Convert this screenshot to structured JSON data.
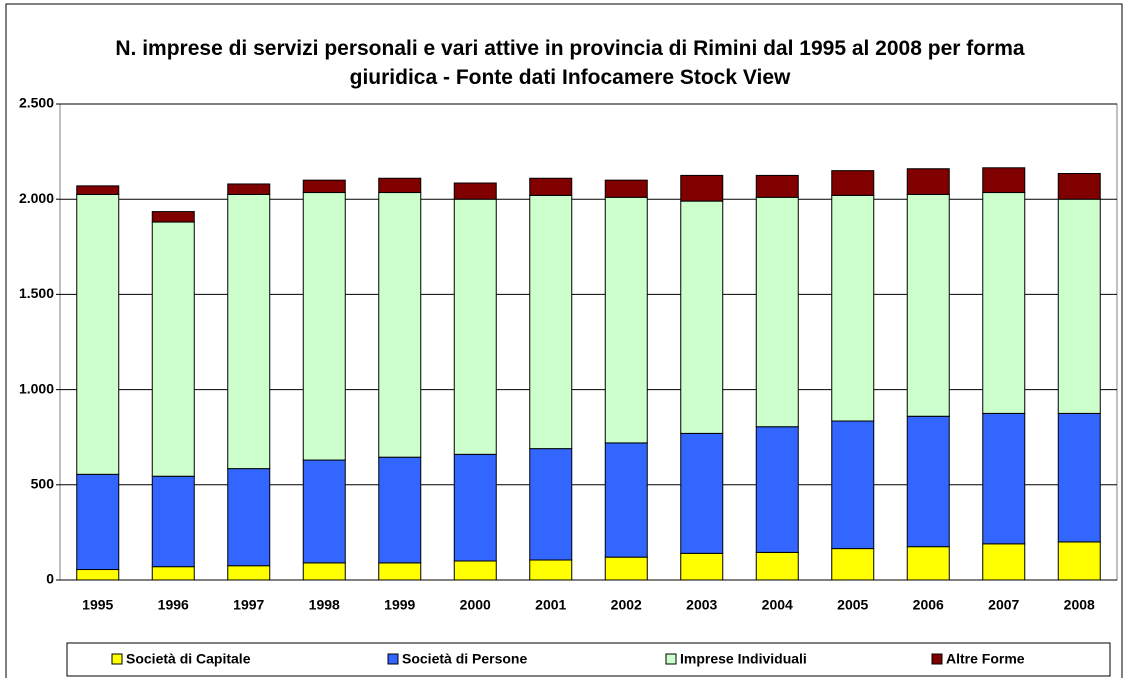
{
  "chart_data": {
    "type": "stacked_bar",
    "title": "N. imprese di servizi personali e vari attive in provincia di Rimini dal 1995 al 2008 per  forma giuridica - Fonte dati Infocamere Stock View",
    "categories": [
      "1995",
      "1996",
      "1997",
      "1998",
      "1999",
      "2000",
      "2001",
      "2002",
      "2003",
      "2004",
      "2005",
      "2006",
      "2007",
      "2008"
    ],
    "series": [
      {
        "name": "Società di Capitale",
        "color": "#ffff00",
        "values": [
          55,
          70,
          75,
          90,
          90,
          100,
          105,
          120,
          140,
          145,
          165,
          175,
          190,
          200
        ]
      },
      {
        "name": "Società di Persone",
        "color": "#3366ff",
        "values": [
          500,
          475,
          510,
          540,
          555,
          560,
          585,
          600,
          630,
          660,
          670,
          685,
          685,
          675
        ]
      },
      {
        "name": "Imprese Individuali",
        "color": "#ccffcc",
        "values": [
          1470,
          1335,
          1440,
          1405,
          1390,
          1340,
          1330,
          1290,
          1220,
          1205,
          1185,
          1165,
          1160,
          1125
        ]
      },
      {
        "name": "Altre Forme",
        "color": "#800000",
        "values": [
          45,
          55,
          55,
          65,
          75,
          85,
          90,
          90,
          135,
          115,
          130,
          135,
          130,
          135
        ]
      }
    ],
    "ylim": [
      0,
      2500
    ],
    "yticks": [
      0,
      500,
      {
        "value": 1000,
        "label": "1.000"
      },
      {
        "value": 1500,
        "label": "1.500"
      },
      {
        "value": 2000,
        "label": "2.000"
      },
      {
        "value": 2500,
        "label": "2.500"
      }
    ],
    "grid": true,
    "legend": "bottom"
  }
}
